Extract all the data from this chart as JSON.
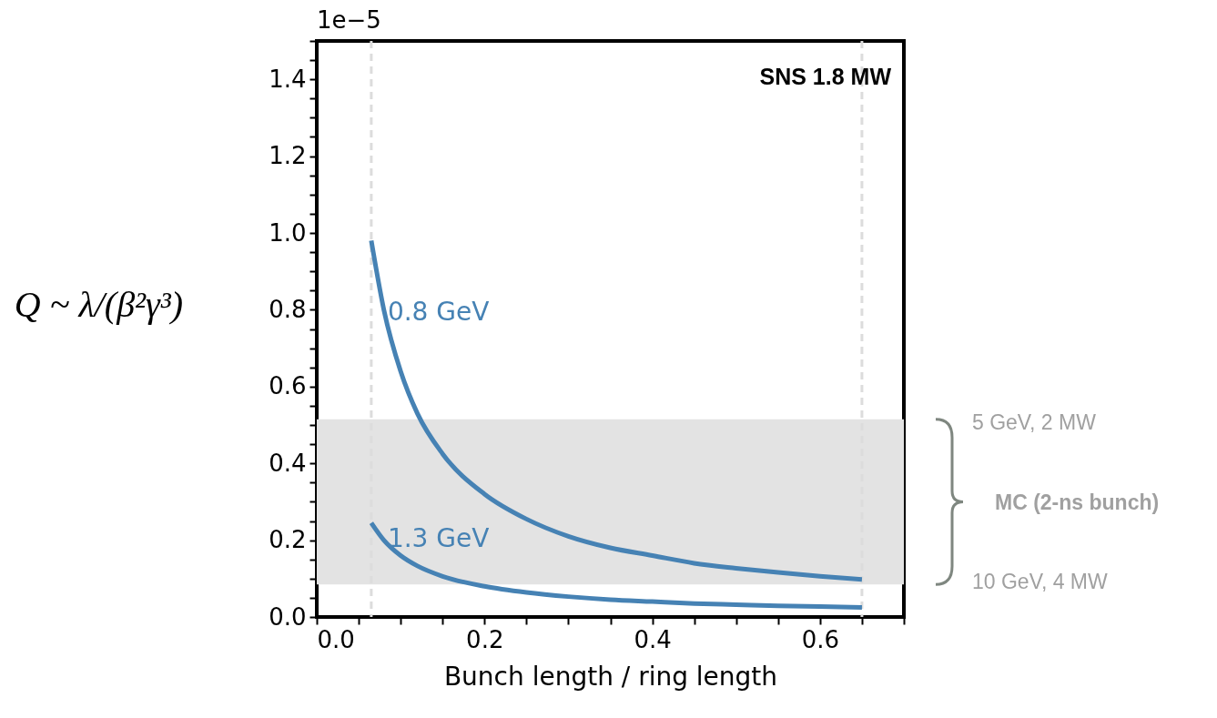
{
  "chart_data": {
    "type": "line",
    "xlabel": "Bunch length / ring length",
    "ylabel": "Q ~ λ/(β²γ³)",
    "xlim": [
      0,
      0.7
    ],
    "ylim": [
      0,
      1.5
    ],
    "xticks": [
      {
        "value": 0,
        "label": "0.0"
      },
      {
        "value": 0.05,
        "label": null
      },
      {
        "value": 0.1,
        "label": null
      },
      {
        "value": 0.15,
        "label": null
      },
      0.2,
      {
        "value": 0.25,
        "label": null
      },
      {
        "value": 0.3,
        "label": null
      },
      {
        "value": 0.35,
        "label": null
      },
      0.4,
      {
        "value": 0.45,
        "label": null
      },
      {
        "value": 0.5,
        "label": null
      },
      {
        "value": 0.55,
        "label": null
      },
      0.6,
      {
        "value": 0.65,
        "label": null
      },
      {
        "value": 0.7,
        "label": null
      }
    ],
    "yticks": [
      {
        "value": 0,
        "label": "0.0"
      },
      {
        "value": 0.05,
        "label": null
      },
      {
        "value": 0.1,
        "label": null
      },
      {
        "value": 0.15,
        "label": null
      },
      0.2,
      {
        "value": 0.25,
        "label": null
      },
      {
        "value": 0.3,
        "label": null
      },
      {
        "value": 0.35,
        "label": null
      },
      0.4,
      {
        "value": 0.45,
        "label": null
      },
      {
        "value": 0.5,
        "label": null
      },
      {
        "value": 0.55,
        "label": null
      },
      0.6,
      {
        "value": 0.65,
        "label": null
      },
      {
        "value": 0.7,
        "label": null
      },
      {
        "value": 0.75,
        "label": null
      },
      0.8,
      {
        "value": 0.85,
        "label": null
      },
      {
        "value": 0.9,
        "label": null
      },
      {
        "value": 0.95,
        "label": null
      },
      {
        "value": 1,
        "label": "1.0"
      },
      {
        "value": 1.05,
        "label": null
      },
      {
        "value": 1.1,
        "label": null
      },
      {
        "value": 1.15,
        "label": null
      },
      1.2,
      {
        "value": 1.25,
        "label": null
      },
      {
        "value": 1.3,
        "label": null
      },
      {
        "value": 1.35,
        "label": null
      },
      1.4,
      {
        "value": 1.45,
        "label": null
      },
      {
        "value": 1.5,
        "label": null
      }
    ],
    "x": [
      0.065,
      0.08,
      0.1,
      0.12,
      0.15,
      0.2,
      0.25,
      0.3,
      0.35,
      0.4,
      0.45,
      0.5,
      0.55,
      0.6,
      0.65
    ],
    "series": [
      {
        "name": "0.8 GeV",
        "color": "#4682b4",
        "values": [
          0.98,
          0.8,
          0.64,
          0.53,
          0.425,
          0.32,
          0.255,
          0.21,
          0.18,
          0.16,
          0.14,
          0.127,
          0.116,
          0.106,
          0.098
        ]
      },
      {
        "name": "1.3 GeV",
        "color": "#4682b4",
        "values": [
          0.245,
          0.2,
          0.16,
          0.133,
          0.106,
          0.08,
          0.064,
          0.053,
          0.045,
          0.04,
          0.035,
          0.032,
          0.029,
          0.027,
          0.025
        ]
      }
    ],
    "ref_lines": [
      {
        "axis": "x",
        "value": 0.065,
        "color": "#dcdcdc",
        "line_style": "dashed"
      },
      {
        "axis": "x",
        "value": 0.65,
        "color": "#dcdcdc",
        "line_style": "dashed"
      }
    ],
    "bands": [
      {
        "axis": "y",
        "from": 0.085,
        "to": 0.515,
        "color": "#e3e3e3"
      }
    ],
    "annotations": [
      "1e−5",
      "SNS 1.8 MW",
      "5 GeV, 2 MW",
      "10 GeV, 4 MW",
      "MC (2-ns bunch)"
    ],
    "grid": false,
    "line_style": "solid",
    "marker": "none"
  }
}
